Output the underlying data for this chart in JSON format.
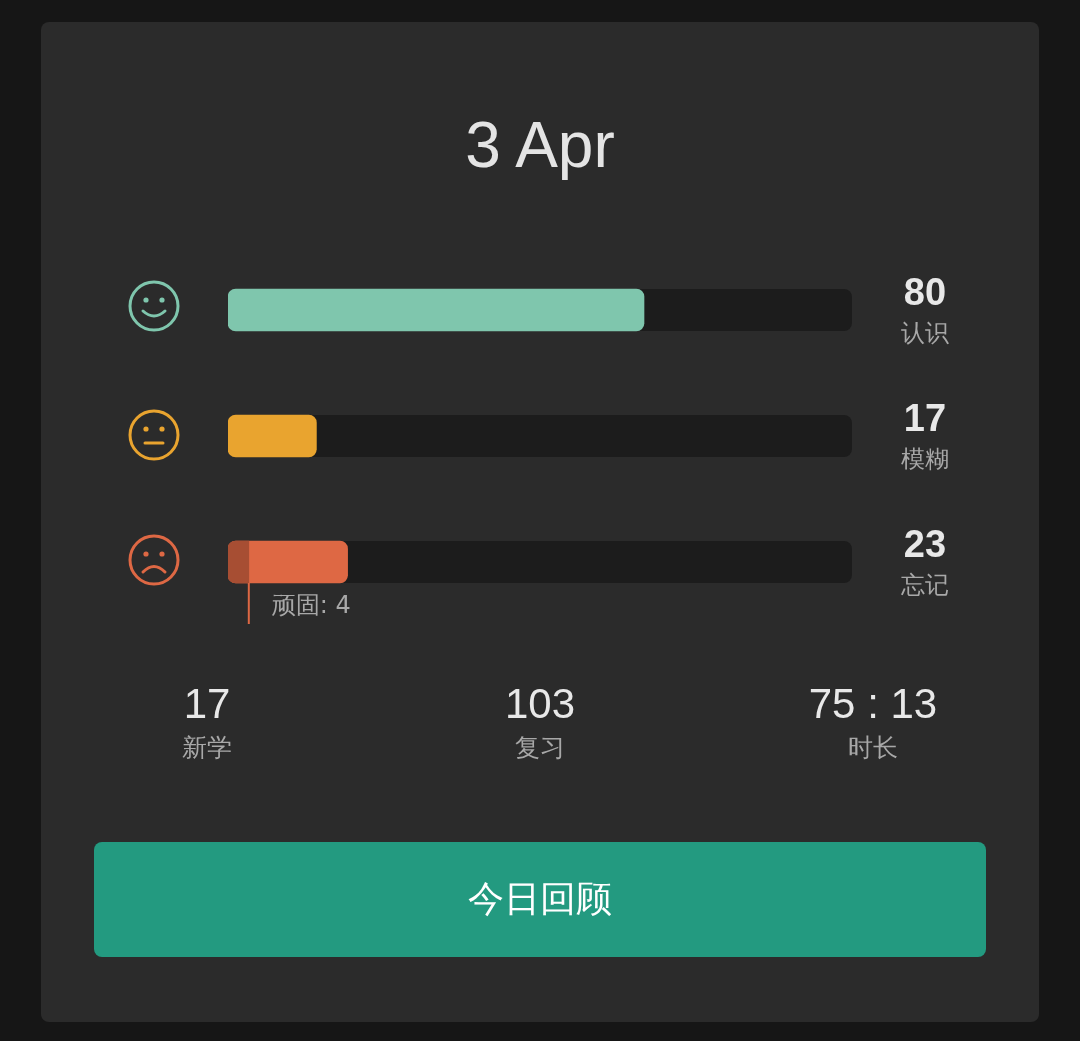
{
  "chart_data": {
    "type": "bar",
    "orientation": "horizontal",
    "title": "3 Apr",
    "categories": [
      "认识",
      "模糊",
      "忘记"
    ],
    "series": [
      {
        "colors": [
          "#7fc6ad",
          "#e9a42f",
          "#de6844"
        ],
        "values": [
          80,
          17,
          23
        ],
        "value_labels": [
          "80",
          "17",
          "23"
        ]
      },
      {
        "color": "#a74e33",
        "values": [
          null,
          null,
          4
        ],
        "value_labels": [
          null,
          null,
          "顽固: 4"
        ]
      }
    ],
    "xlim": [
      0,
      120
    ],
    "legend": false,
    "annotations": [
      "17",
      "新学",
      "103",
      "复习",
      "75 : 13",
      "时长",
      "今日回顾"
    ]
  }
}
